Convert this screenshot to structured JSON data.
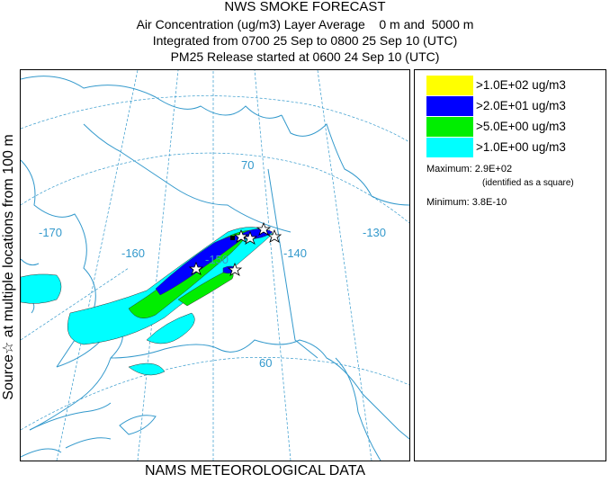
{
  "header": {
    "title": "NWS SMOKE FORECAST",
    "line1": "Air Concentration (ug/m3) Layer Average    0 m and  5000 m",
    "line2": "Integrated from 0700 25 Sep to 0800 25 Sep 10 (UTC)",
    "line3": "PM25 Release started at 0600 24 Sep 10 (UTC)"
  },
  "side_label": "Source☆ at multiple locations  from  100 m",
  "footer": "NAMS METEOROLOGICAL DATA",
  "legend": {
    "items": [
      {
        "label": ">1.0E+02 ug/m3",
        "color": "#ffff00"
      },
      {
        "label": ">2.0E+01 ug/m3",
        "color": "#0000ff"
      },
      {
        "label": ">5.0E+00 ug/m3",
        "color": "#00ee00"
      },
      {
        "label": ">1.0E+00 ug/m3",
        "color": "#00ffff"
      }
    ],
    "maximum": "Maximum: 2.9E+02",
    "maximum_note": "(identified as a square)",
    "minimum": "Minimum: 3.8E-10"
  },
  "map": {
    "graticule_labels": {
      "lon_170": "-170",
      "lon_160": "-160",
      "lon_150": "-150",
      "lon_140": "-140",
      "lon_130": "-130",
      "lat_70": "70",
      "lat_60": "60"
    },
    "colors": {
      "coast": "#3399cc",
      "graticule": "#3399cc",
      "plume_outline": "#333333"
    }
  }
}
